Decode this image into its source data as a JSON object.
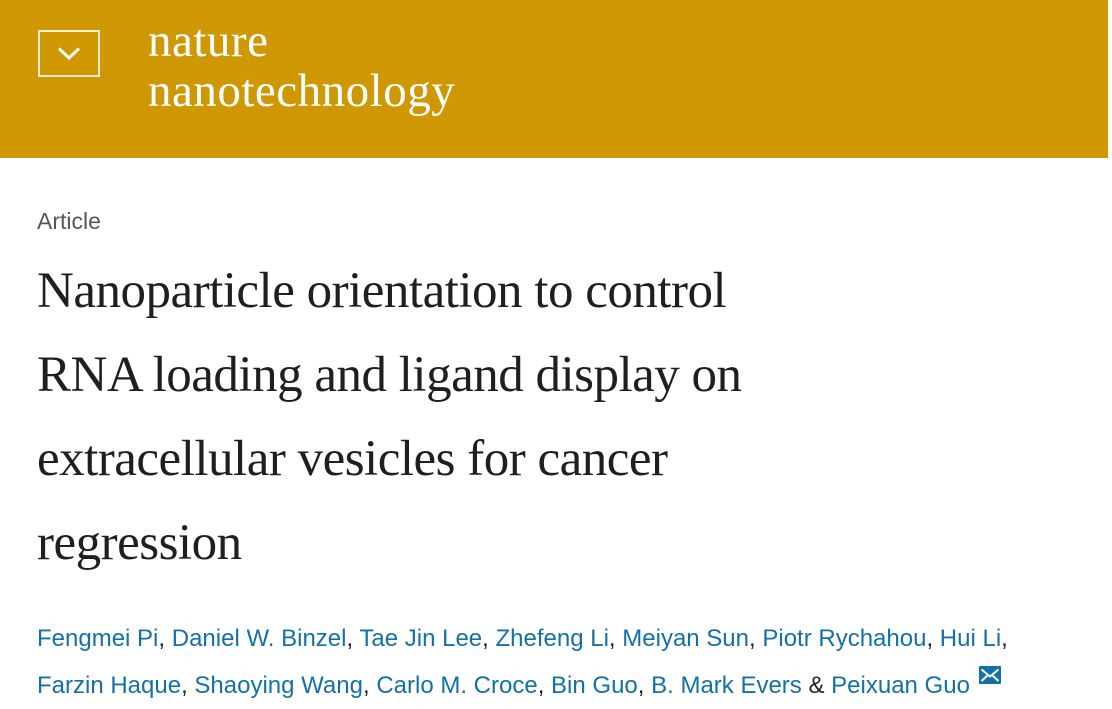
{
  "header": {
    "background_color": "#CF9702",
    "menu_icon": "chevron-down-icon",
    "logo_line1": "nature",
    "logo_line2": "nanotechnology"
  },
  "article": {
    "label": "Article",
    "title": "Nanoparticle orientation to control RNA loading and ligand display on extracellular vesicles for cancer regression",
    "title_lines": [
      "Nanoparticle orientation to control",
      "RNA loading and ligand display on",
      "extracellular vesicles for cancer",
      "regression"
    ],
    "title_color": "#1F1F1F",
    "label_color": "#54565B"
  },
  "authors": {
    "link_color": "#1371A9",
    "email_icon": "envelope-icon",
    "lines": [
      {
        "names": [
          "Fengmei Pi",
          "Daniel W. Binzel",
          "Tae Jin Lee",
          "Zhefeng Li",
          "Meiyan Sun",
          "Piotr Rychahou",
          "Hui Li"
        ],
        "trailing": ","
      },
      {
        "names": [
          "Farzin Haque",
          "Shaoying Wang",
          "Carlo M. Croce",
          "Bin Guo",
          "B. Mark Evers",
          "Peixuan Guo"
        ],
        "amp_before_last": true
      }
    ]
  }
}
